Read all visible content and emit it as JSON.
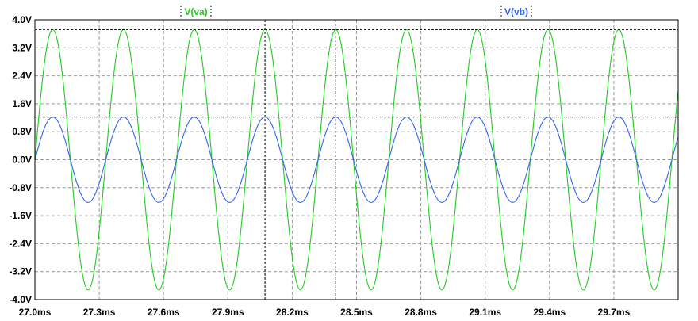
{
  "chart_data": {
    "type": "line",
    "title": "",
    "xlabel": "",
    "ylabel": "",
    "xlim": [
      27.0,
      30.0
    ],
    "ylim": [
      -4.0,
      4.0
    ],
    "x_unit": "ms",
    "y_unit": "V",
    "grid": true,
    "x_ticks": [
      "27.0ms",
      "27.3ms",
      "27.6ms",
      "27.9ms",
      "28.2ms",
      "28.5ms",
      "28.8ms",
      "29.1ms",
      "29.4ms",
      "29.7ms"
    ],
    "y_ticks": [
      "4.0V",
      "3.2V",
      "2.4V",
      "1.6V",
      "0.8V",
      "0.0V",
      "-0.8V",
      "-1.6V",
      "-2.4V",
      "-3.2V",
      "-4.0V"
    ],
    "series": [
      {
        "name": "V(va)",
        "color": "#22cc22",
        "waveform": "sine",
        "amplitude_v": 3.72,
        "period_ms": 0.33,
        "first_peak_ms": 27.083,
        "peaks_ms": [
          27.083,
          27.413,
          27.743,
          28.073,
          28.403,
          28.733,
          29.063,
          29.393,
          29.723
        ]
      },
      {
        "name": "V(vb)",
        "color": "#3366ee",
        "waveform": "sine",
        "amplitude_v": 1.22,
        "period_ms": 0.33,
        "first_peak_ms": 27.083,
        "peaks_ms": [
          27.083,
          27.413,
          27.743,
          28.073,
          28.403,
          28.733,
          29.063,
          29.393,
          29.723
        ]
      }
    ],
    "cursors": {
      "x_ms": [
        28.073,
        28.403
      ],
      "y_v": [
        3.72,
        1.22
      ]
    },
    "legend": "top"
  }
}
